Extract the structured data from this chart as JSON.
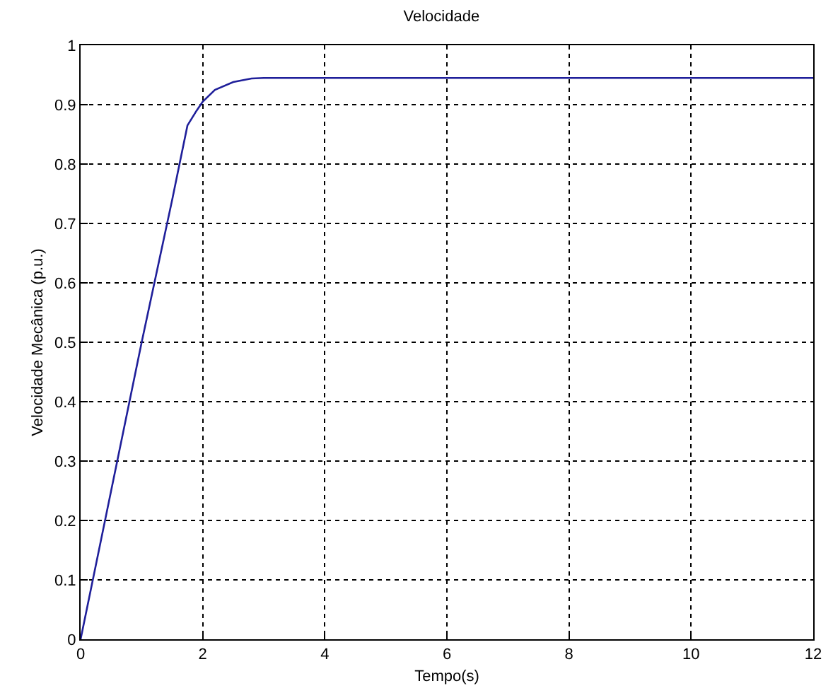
{
  "chart_data": {
    "type": "line",
    "title": "Velocidade",
    "xlabel": "Tempo(s)",
    "ylabel": "Velocidade Mecânica (p.u.)",
    "x": [
      0,
      0.5,
      1,
      1.5,
      1.75,
      1.9,
      2,
      2.2,
      2.5,
      2.8,
      3,
      6,
      12
    ],
    "series": [
      {
        "color": "#1f1f9a",
        "values": [
          0,
          0.25,
          0.5,
          0.74,
          0.865,
          0.89,
          0.905,
          0.925,
          0.938,
          0.944,
          0.945,
          0.945,
          0.945
        ]
      }
    ],
    "xlim": [
      0,
      12
    ],
    "xticks": [
      0,
      2,
      4,
      6,
      8,
      10,
      12
    ],
    "ylim": [
      0,
      1
    ],
    "yticks": [
      0,
      0.1,
      0.2,
      0.3,
      0.4,
      0.5,
      0.6,
      0.7,
      0.8,
      0.9,
      1
    ],
    "grid": true,
    "line_style": "solid",
    "marker": "none"
  }
}
